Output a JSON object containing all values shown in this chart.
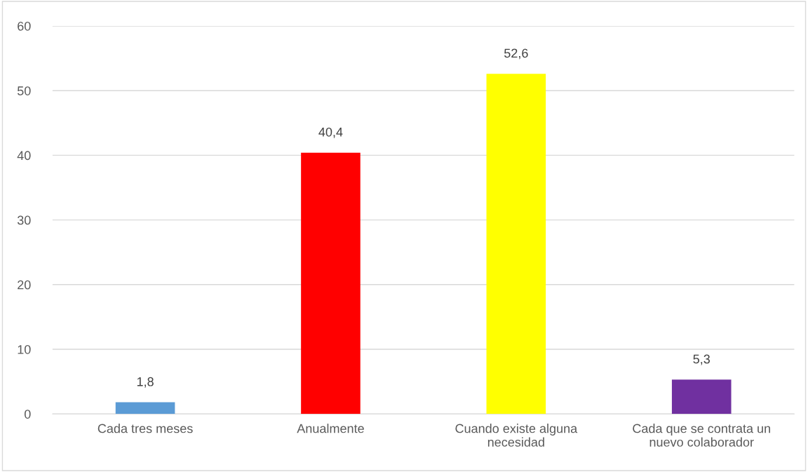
{
  "chart_data": {
    "type": "bar",
    "categories": [
      "Cada tres meses",
      "Anualmente",
      "Cuando existe alguna\nnecesidad",
      "Cada que se contrata un\nnuevo colaborador"
    ],
    "values": [
      1.8,
      40.4,
      52.6,
      5.3
    ],
    "colors": [
      "#5b9bd5",
      "#ff0000",
      "#ffff00",
      "#7030a0"
    ],
    "value_labels": [
      "1,8",
      "40,4",
      "52,6",
      "5,3"
    ],
    "ylim": [
      0,
      60
    ],
    "yticks": [
      0,
      10,
      20,
      30,
      40,
      50,
      60
    ],
    "grid": "y",
    "legend": false
  }
}
